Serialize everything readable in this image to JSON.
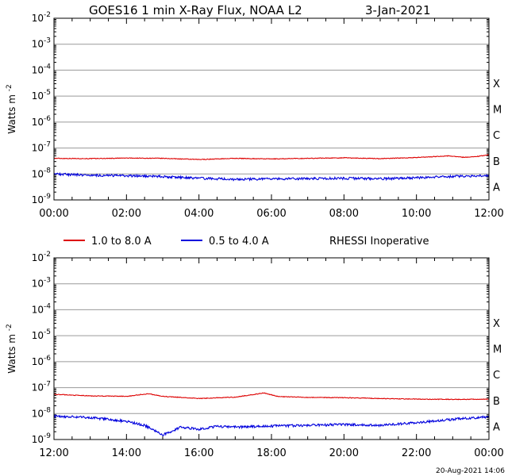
{
  "title": {
    "left": "GOES16 1 min X-Ray Flux, NOAA L2",
    "date": "3-Jan-2021"
  },
  "legend": {
    "items": [
      {
        "label": "1.0 to 8.0 A",
        "color": "#dd0000"
      },
      {
        "label": "0.5 to 4.0 A",
        "color": "#0000dd"
      }
    ],
    "note": "RHESSI Inoperative"
  },
  "footer": {
    "timestamp": "20-Aug-2021 14:06"
  },
  "chart_data": [
    {
      "type": "line",
      "ylabel": "Watts m",
      "ylabel_sup": "-2",
      "yscale": "log",
      "ylim": [
        1e-09,
        0.01
      ],
      "ytick_exponents": [
        -2,
        -3,
        -4,
        -5,
        -6,
        -7,
        -8,
        -9
      ],
      "class_labels": [
        "X",
        "M",
        "C",
        "B",
        "A"
      ],
      "xlim_hours": [
        0,
        12
      ],
      "xticks": [
        "00:00",
        "02:00",
        "04:00",
        "06:00",
        "08:00",
        "10:00",
        "12:00"
      ],
      "grid": true,
      "series": [
        {
          "color": "#dd0000",
          "x": [
            0,
            1,
            2,
            3,
            4,
            5,
            6,
            7,
            8,
            9,
            10,
            10.9,
            11.3,
            11.6,
            12
          ],
          "y": [
            4e-08,
            3.9e-08,
            4.1e-08,
            4e-08,
            3.6e-08,
            4e-08,
            3.8e-08,
            4e-08,
            4.2e-08,
            3.9e-08,
            4.3e-08,
            5e-08,
            4.4e-08,
            4.6e-08,
            5.5e-08
          ]
        },
        {
          "color": "#0000dd",
          "x": [
            0,
            1,
            2,
            3,
            4,
            5,
            6,
            7,
            8,
            9,
            10,
            11,
            12
          ],
          "y": [
            1e-08,
            9e-09,
            8.5e-09,
            8e-09,
            6.8e-09,
            6.2e-09,
            6.4e-09,
            6.6e-09,
            6.8e-09,
            6.5e-09,
            7.2e-09,
            8e-09,
            8.8e-09
          ]
        }
      ]
    },
    {
      "type": "line",
      "ylabel": "Watts m",
      "ylabel_sup": "-2",
      "yscale": "log",
      "ylim": [
        1e-09,
        0.01
      ],
      "ytick_exponents": [
        -2,
        -3,
        -4,
        -5,
        -6,
        -7,
        -8,
        -9
      ],
      "class_labels": [
        "X",
        "M",
        "C",
        "B",
        "A"
      ],
      "xlim_hours": [
        12,
        24
      ],
      "xticks": [
        "12:00",
        "14:00",
        "16:00",
        "18:00",
        "20:00",
        "22:00",
        "00:00"
      ],
      "grid": true,
      "series": [
        {
          "color": "#dd0000",
          "x": [
            12,
            13,
            14,
            14.6,
            15,
            16,
            17,
            17.8,
            18.2,
            19,
            20,
            21,
            22,
            23,
            24
          ],
          "y": [
            5.5e-08,
            4.8e-08,
            4.6e-08,
            5.8e-08,
            4.6e-08,
            3.8e-08,
            4.3e-08,
            6.2e-08,
            4.5e-08,
            4.2e-08,
            4.1e-08,
            3.8e-08,
            3.6e-08,
            3.5e-08,
            3.6e-08
          ]
        },
        {
          "color": "#0000dd",
          "x": [
            12,
            13,
            14,
            14.5,
            15,
            15.5,
            16,
            16.5,
            17,
            18,
            19,
            20,
            21,
            22,
            23,
            24
          ],
          "y": [
            8e-09,
            7e-09,
            5e-09,
            3.5e-09,
            1.5e-09,
            3e-09,
            2.5e-09,
            3.2e-09,
            3e-09,
            3.3e-09,
            3.5e-09,
            3.8e-09,
            3.5e-09,
            4.5e-09,
            6e-09,
            7.5e-09
          ]
        }
      ]
    }
  ]
}
